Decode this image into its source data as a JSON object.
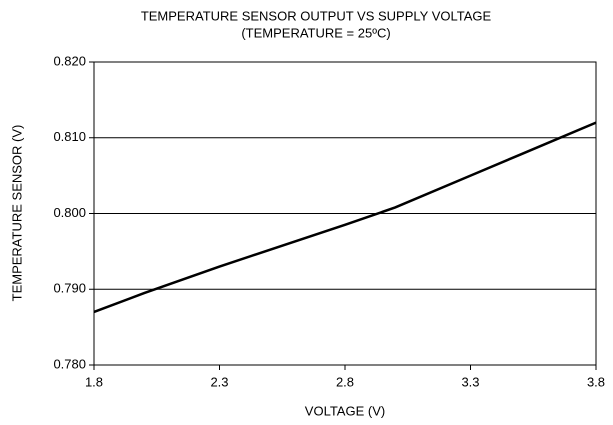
{
  "chart_data": {
    "type": "line",
    "title": "TEMPERATURE SENSOR OUTPUT VS SUPPLY VOLTAGE",
    "subtitle": "(TEMPERATURE = 25ºC)",
    "x_label": "VOLTAGE (V)",
    "y_label": "TEMPERATURE SENSOR (V)",
    "x": [
      1.8,
      2.0,
      2.3,
      2.8,
      3.0,
      3.3,
      3.5,
      3.8
    ],
    "series": [
      {
        "color": "#000000",
        "values": [
          0.787,
          0.7895,
          0.793,
          0.7985,
          0.8008,
          0.805,
          0.8078,
          0.812
        ]
      }
    ],
    "xlim": [
      1.8,
      3.8
    ],
    "xticks": [
      1.8,
      2.3,
      2.8,
      3.3,
      3.8
    ],
    "ylim": [
      0.78,
      0.82
    ],
    "yticks": [
      {
        "value": 0.78,
        "label": "0.780"
      },
      {
        "value": 0.79,
        "label": "0.790"
      },
      {
        "value": 0.8,
        "label": "0.800"
      },
      {
        "value": 0.81,
        "label": "0.810"
      },
      {
        "value": 0.82,
        "label": "0.820"
      }
    ],
    "grid": true
  }
}
